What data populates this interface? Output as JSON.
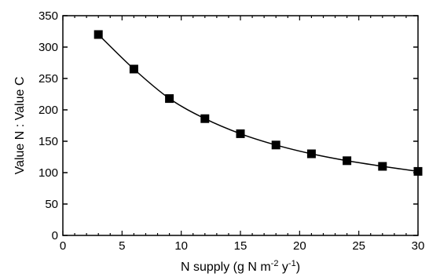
{
  "chart_data": {
    "type": "line",
    "x": [
      3,
      6,
      9,
      12,
      15,
      18,
      21,
      24,
      27,
      30
    ],
    "y": [
      320,
      265,
      218,
      186,
      162,
      144,
      130,
      119,
      110,
      102
    ],
    "xlim": [
      0,
      30
    ],
    "ylim": [
      0,
      350
    ],
    "xticks": [
      0,
      5,
      10,
      15,
      20,
      25,
      30
    ],
    "yticks": [
      0,
      50,
      100,
      150,
      200,
      250,
      300,
      350
    ],
    "xlabel_parts": {
      "p1": "N supply (g N m",
      "sup1": "-2",
      "p2": " y",
      "sup2": "-1",
      "p3": ")"
    },
    "ylabel": "Value N : Value C",
    "grid": false,
    "legend": "none",
    "marker": "square",
    "line_color": "#000000",
    "marker_color": "#000000"
  }
}
